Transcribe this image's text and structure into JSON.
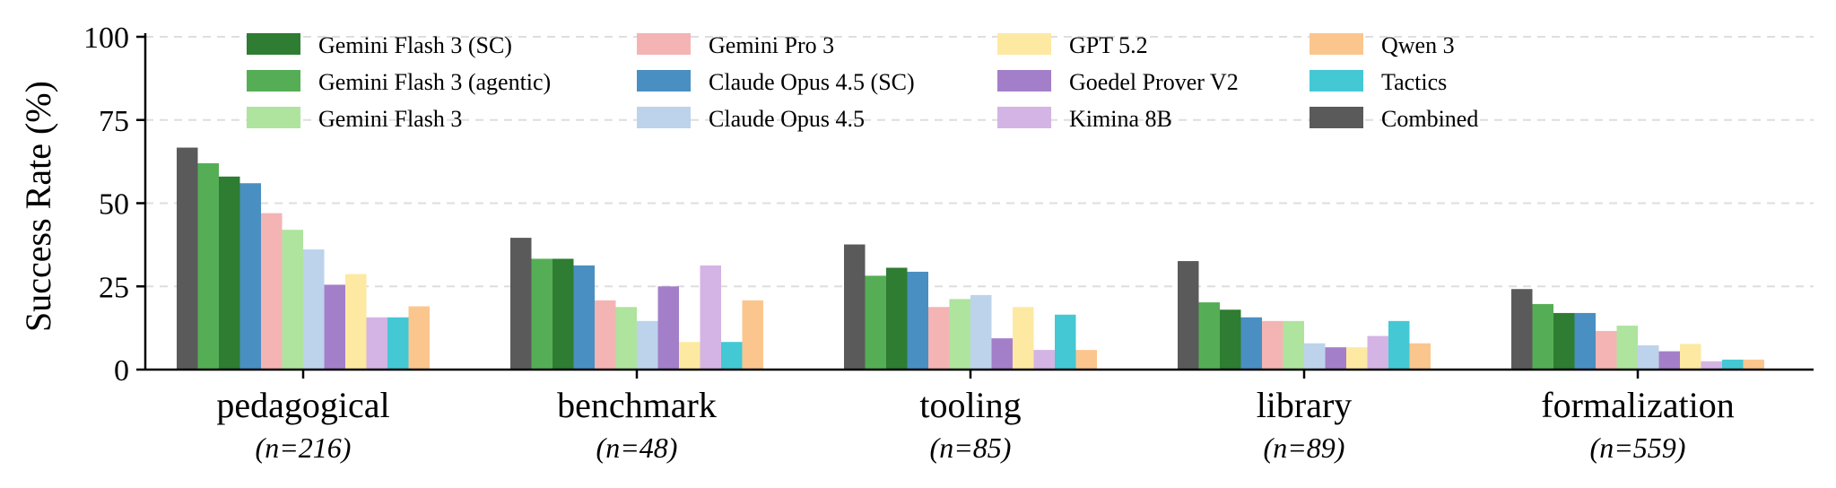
{
  "chart_data": {
    "type": "bar",
    "title": "",
    "xlabel": "",
    "ylabel": "Success Rate (%)",
    "ylim": [
      0,
      100
    ],
    "yticks": [
      0,
      25,
      50,
      75,
      100
    ],
    "grid": "horizontal-dashed",
    "legend_position": "top",
    "categories": [
      "pedagogical",
      "benchmark",
      "tooling",
      "library",
      "formalization"
    ],
    "category_counts": [
      "(n=216)",
      "(n=48)",
      "(n=85)",
      "(n=89)",
      "(n=559)"
    ],
    "legend_order": [
      "Gemini Flash 3 (SC)",
      "Gemini Flash 3 (agentic)",
      "Gemini Flash 3",
      "Gemini Pro 3",
      "Claude Opus 4.5 (SC)",
      "Claude Opus 4.5",
      "GPT 5.2",
      "Goedel Prover V2",
      "Kimina 8B",
      "Qwen 3",
      "Tactics",
      "Combined"
    ],
    "series": [
      {
        "name": "Combined",
        "color": "#5a5a5a",
        "values": [
          66.7,
          39.6,
          37.6,
          32.6,
          24.2
        ]
      },
      {
        "name": "Gemini Flash 3 (agentic)",
        "color": "#55ae55",
        "values": [
          62.0,
          33.3,
          28.2,
          20.2,
          19.7
        ]
      },
      {
        "name": "Gemini Flash 3 (SC)",
        "color": "#2e7d32",
        "values": [
          58.0,
          33.3,
          30.6,
          18.0,
          17.0
        ]
      },
      {
        "name": "Claude Opus 4.5 (SC)",
        "color": "#4a8fc2",
        "values": [
          56.0,
          31.3,
          29.4,
          15.7,
          17.0
        ]
      },
      {
        "name": "Gemini Pro 3",
        "color": "#f4b4b4",
        "values": [
          47.0,
          20.8,
          18.8,
          14.6,
          11.6
        ]
      },
      {
        "name": "Gemini Flash 3",
        "color": "#aee49e",
        "values": [
          42.0,
          18.8,
          21.2,
          14.6,
          13.2
        ]
      },
      {
        "name": "Claude Opus 4.5",
        "color": "#bdd3ec",
        "values": [
          36.1,
          14.6,
          22.4,
          7.9,
          7.3
        ]
      },
      {
        "name": "Goedel Prover V2",
        "color": "#a47fc9",
        "values": [
          25.5,
          25.0,
          9.4,
          6.7,
          5.5
        ]
      },
      {
        "name": "GPT 5.2",
        "color": "#fde9a2",
        "values": [
          28.7,
          8.3,
          18.8,
          6.7,
          7.7
        ]
      },
      {
        "name": "Kimina 8B",
        "color": "#d4b4e4",
        "values": [
          15.7,
          31.3,
          5.9,
          10.1,
          2.5
        ]
      },
      {
        "name": "Tactics",
        "color": "#44c8d4",
        "values": [
          15.7,
          8.3,
          16.5,
          14.6,
          3.0
        ]
      },
      {
        "name": "Qwen 3",
        "color": "#fbc68e",
        "values": [
          19.0,
          20.8,
          5.9,
          7.9,
          3.0
        ]
      }
    ]
  }
}
